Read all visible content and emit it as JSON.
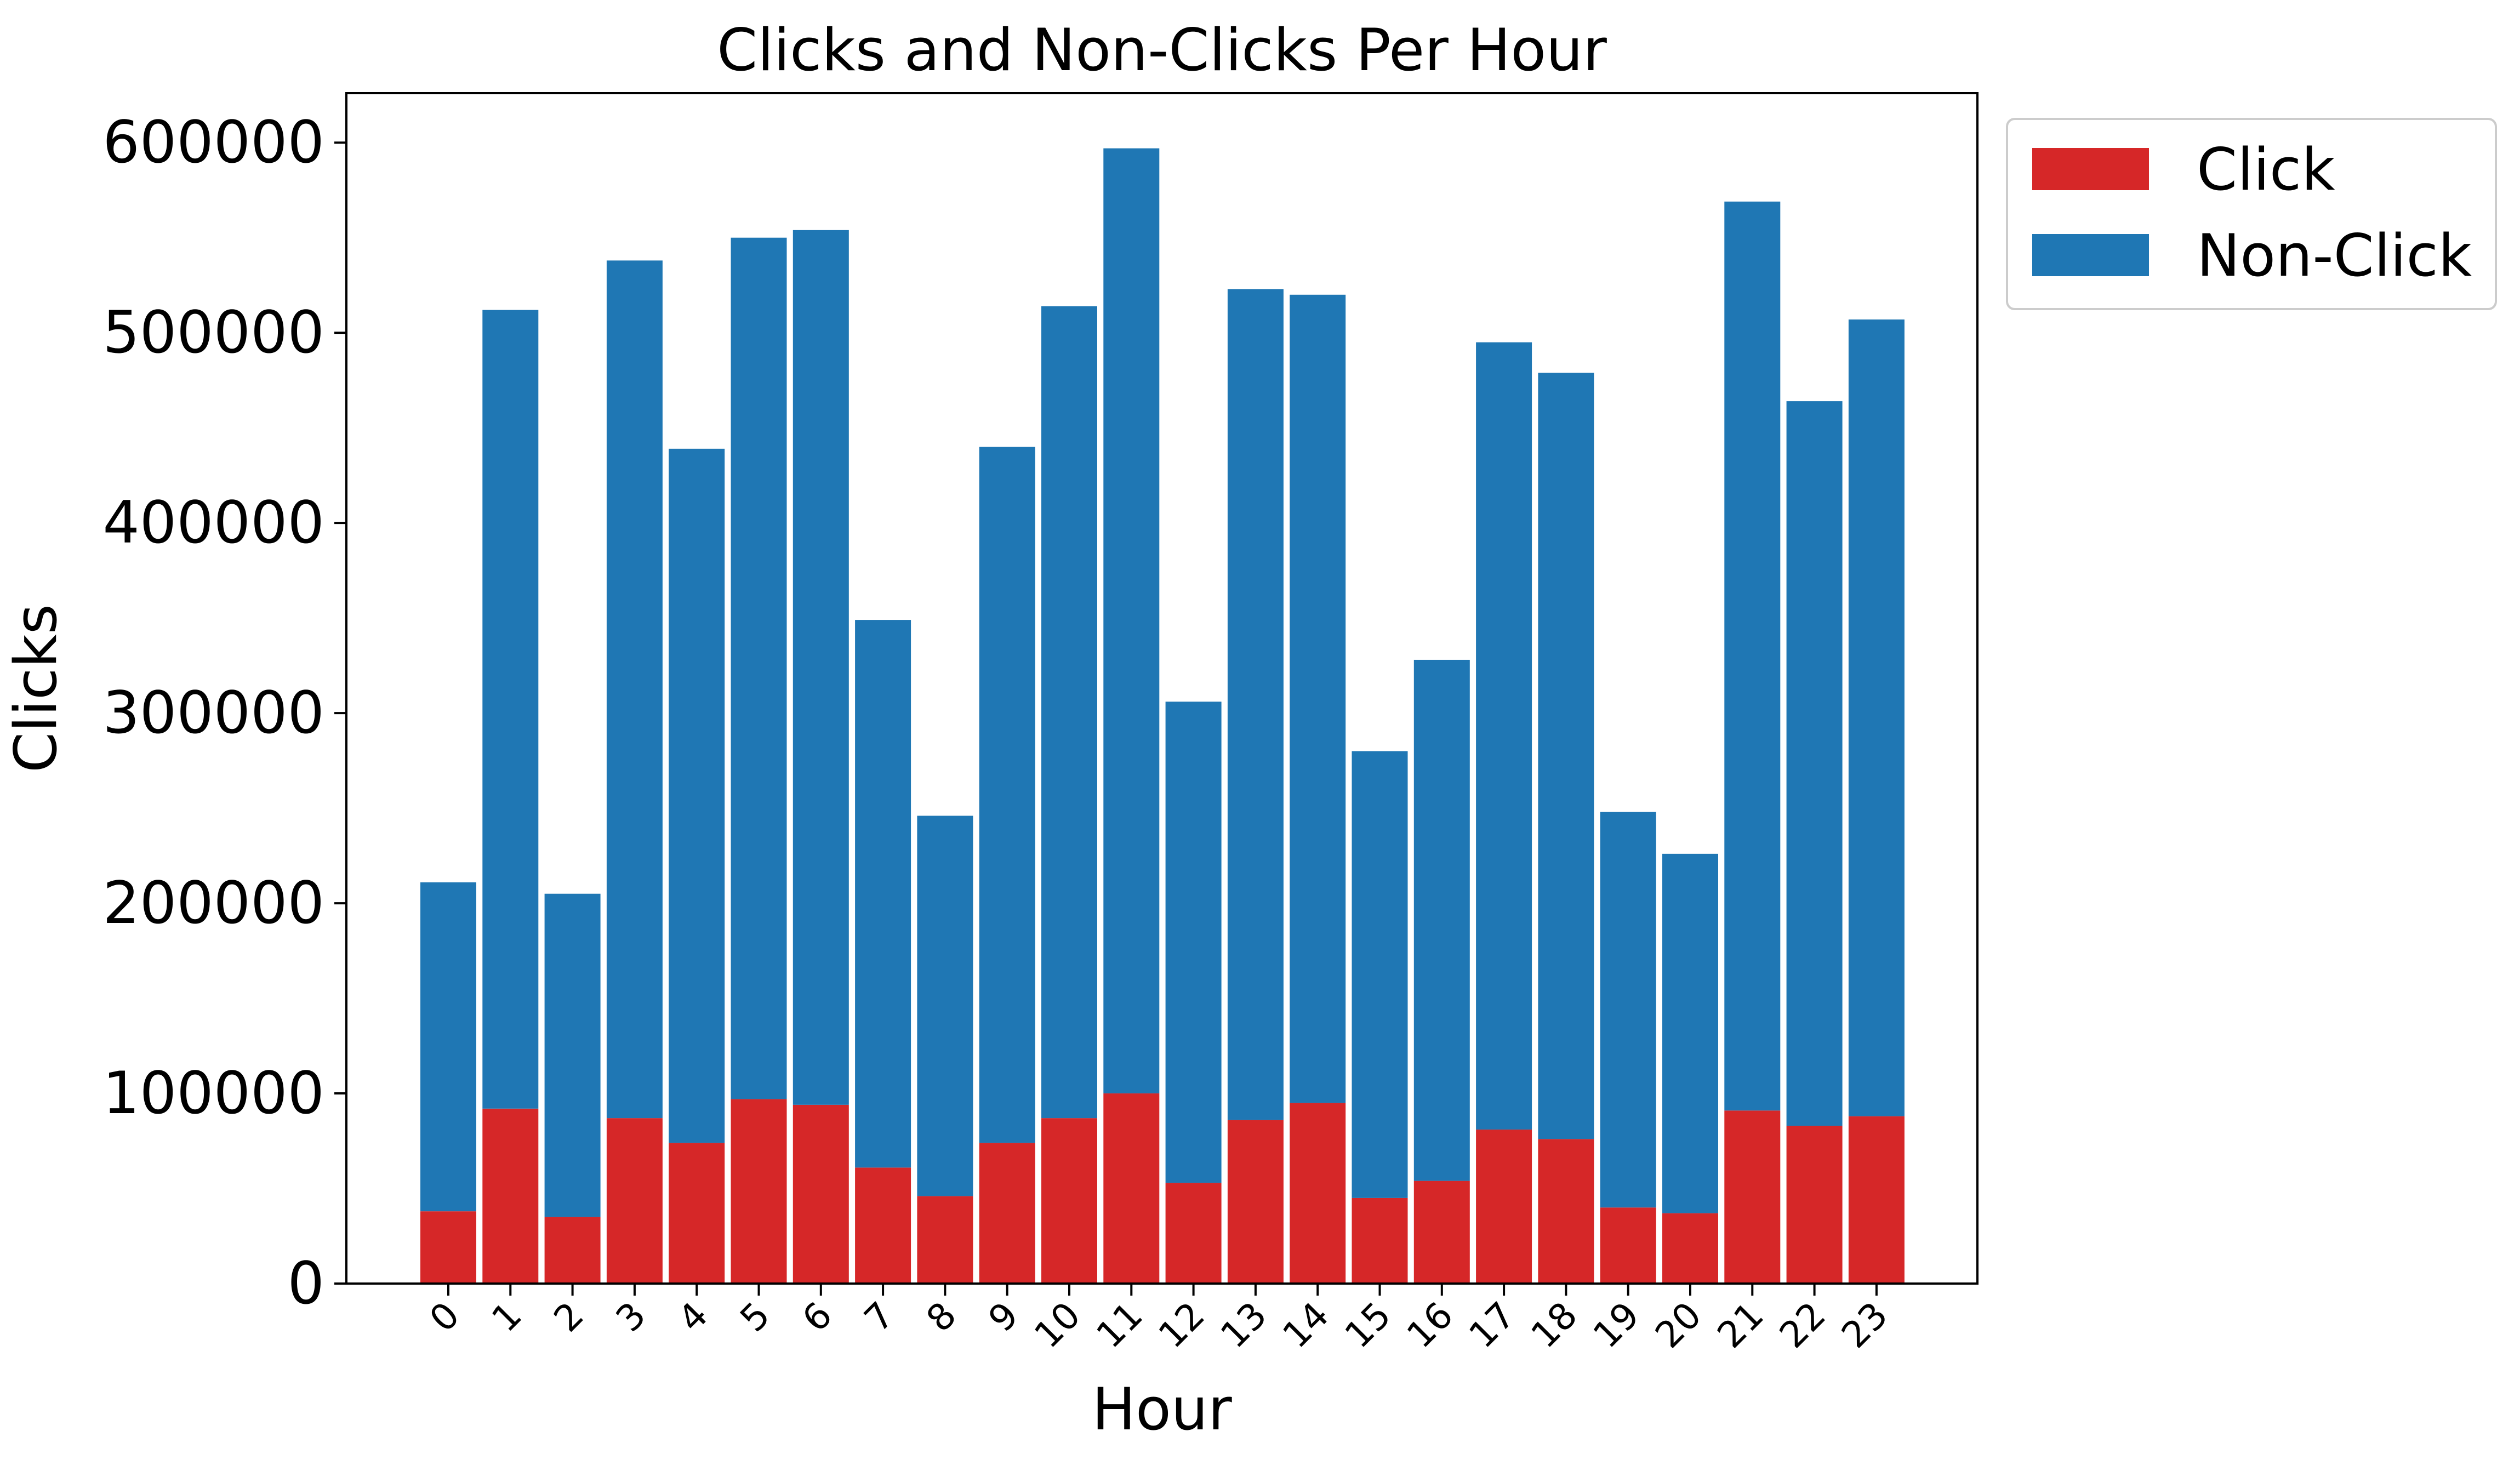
{
  "chart_data": {
    "type": "bar",
    "stacked": true,
    "title": "Clicks and Non-Clicks Per Hour",
    "xlabel": "Hour",
    "ylabel": "Clicks",
    "ylim": [
      0,
      626000
    ],
    "yticks": [
      "0",
      "100000",
      "200000",
      "300000",
      "400000",
      "500000",
      "600000"
    ],
    "ytick_values": [
      0,
      100000,
      200000,
      300000,
      400000,
      500000,
      600000
    ],
    "grid": false,
    "legend": {
      "placement": "outside-top-right"
    },
    "categories": [
      "0",
      "1",
      "2",
      "3",
      "4",
      "5",
      "6",
      "7",
      "8",
      "9",
      "10",
      "11",
      "12",
      "13",
      "14",
      "15",
      "16",
      "17",
      "18",
      "19",
      "20",
      "21",
      "22",
      "23"
    ],
    "series": [
      {
        "name": "Click",
        "color": "#d62728",
        "values": [
          38000,
          92000,
          35000,
          87000,
          74000,
          97000,
          94000,
          61000,
          46000,
          74000,
          87000,
          100000,
          53000,
          86000,
          95000,
          45000,
          54000,
          81000,
          76000,
          40000,
          37000,
          91000,
          83000,
          88000
        ]
      },
      {
        "name": "Non-Click",
        "color": "#1f77b4",
        "values": [
          173000,
          420000,
          170000,
          451000,
          365000,
          453000,
          460000,
          288000,
          200000,
          366000,
          427000,
          497000,
          253000,
          437000,
          425000,
          235000,
          274000,
          414000,
          403000,
          208000,
          189000,
          478000,
          381000,
          419000
        ]
      }
    ]
  }
}
